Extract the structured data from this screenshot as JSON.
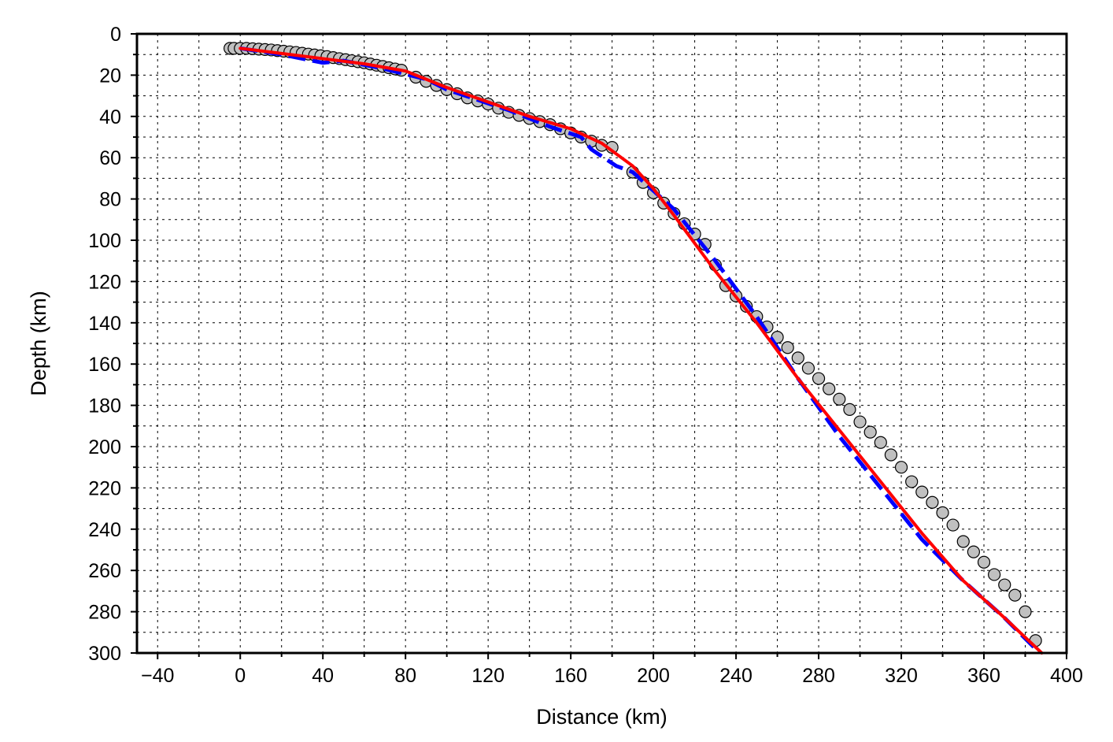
{
  "chart_data": {
    "type": "line",
    "xlabel": "Distance (km)",
    "ylabel": "Depth (km)",
    "xlim": [
      -50,
      400
    ],
    "ylim": [
      300,
      0
    ],
    "y_inverted": true,
    "x_ticks": [
      "−40",
      "0",
      "40",
      "80",
      "120",
      "160",
      "200",
      "240",
      "280",
      "320",
      "360",
      "400"
    ],
    "x_tick_values": [
      -40,
      0,
      40,
      80,
      120,
      160,
      200,
      240,
      280,
      320,
      360,
      400
    ],
    "y_ticks": [
      "0",
      "20",
      "40",
      "60",
      "80",
      "100",
      "120",
      "140",
      "160",
      "180",
      "200",
      "220",
      "240",
      "260",
      "280",
      "300"
    ],
    "y_tick_values": [
      0,
      20,
      40,
      60,
      80,
      100,
      120,
      140,
      160,
      180,
      200,
      220,
      240,
      260,
      280,
      300
    ],
    "grid": true,
    "grid_style": "dotted",
    "minor_grid_step_x": 20,
    "minor_grid_step_y": 10,
    "colors": {
      "points_fill": "#c0c0c0",
      "points_stroke": "#000000",
      "dashed_line": "#0000ff",
      "fit_line": "#ff0000"
    },
    "series": [
      {
        "marker": "circle",
        "points": [
          [
            -5,
            7
          ],
          [
            -3,
            7
          ],
          [
            0,
            7
          ],
          [
            3,
            7
          ],
          [
            6,
            7.2
          ],
          [
            9,
            7.4
          ],
          [
            12,
            7.6
          ],
          [
            15,
            7.8
          ],
          [
            18,
            8.1
          ],
          [
            21,
            8.4
          ],
          [
            24,
            8.7
          ],
          [
            27,
            9.0
          ],
          [
            30,
            9.4
          ],
          [
            33,
            9.8
          ],
          [
            36,
            10.2
          ],
          [
            39,
            10.6
          ],
          [
            42,
            11.0
          ],
          [
            45,
            11.5
          ],
          [
            48,
            12.0
          ],
          [
            51,
            12.5
          ],
          [
            54,
            13.0
          ],
          [
            57,
            13.5
          ],
          [
            60,
            14.0
          ],
          [
            63,
            14.6
          ],
          [
            66,
            15.2
          ],
          [
            69,
            15.8
          ],
          [
            72,
            16.4
          ],
          [
            75,
            17.0
          ],
          [
            78,
            17.6
          ],
          [
            85,
            21
          ],
          [
            90,
            23
          ],
          [
            95,
            25
          ],
          [
            100,
            27
          ],
          [
            105,
            29
          ],
          [
            110,
            31
          ],
          [
            115,
            32.5
          ],
          [
            120,
            34
          ],
          [
            125,
            36
          ],
          [
            130,
            38
          ],
          [
            135,
            39.5
          ],
          [
            140,
            41
          ],
          [
            145,
            42.5
          ],
          [
            150,
            44
          ],
          [
            155,
            46
          ],
          [
            160,
            48
          ],
          [
            165,
            50
          ],
          [
            170,
            52
          ],
          [
            175,
            54
          ],
          [
            180,
            55
          ],
          [
            190,
            67
          ],
          [
            195,
            72
          ],
          [
            200,
            77
          ],
          [
            205,
            82
          ],
          [
            210,
            87
          ],
          [
            215,
            92
          ],
          [
            220,
            97
          ],
          [
            225,
            102
          ],
          [
            230,
            112
          ],
          [
            235,
            122
          ],
          [
            240,
            127
          ],
          [
            245,
            132
          ],
          [
            250,
            137
          ],
          [
            255,
            142
          ],
          [
            260,
            147
          ],
          [
            265,
            152
          ],
          [
            270,
            157
          ],
          [
            275,
            162
          ],
          [
            280,
            167
          ],
          [
            285,
            172
          ],
          [
            290,
            177
          ],
          [
            295,
            182
          ],
          [
            300,
            188
          ],
          [
            305,
            193
          ],
          [
            310,
            198
          ],
          [
            315,
            204
          ],
          [
            320,
            210
          ],
          [
            325,
            217
          ],
          [
            330,
            222
          ],
          [
            335,
            227
          ],
          [
            340,
            232
          ],
          [
            345,
            238
          ],
          [
            350,
            246
          ],
          [
            355,
            251
          ],
          [
            360,
            256
          ],
          [
            365,
            262
          ],
          [
            370,
            267
          ],
          [
            375,
            272
          ],
          [
            380,
            280
          ],
          [
            385,
            294
          ]
        ]
      },
      {
        "style": "dashed",
        "points": [
          [
            0,
            7
          ],
          [
            20,
            10
          ],
          [
            40,
            14
          ],
          [
            50,
            13
          ],
          [
            70,
            17
          ],
          [
            90,
            22
          ],
          [
            100,
            27
          ],
          [
            130,
            37
          ],
          [
            150,
            45
          ],
          [
            165,
            50
          ],
          [
            170,
            56
          ],
          [
            182,
            64
          ],
          [
            190,
            67
          ],
          [
            210,
            85
          ],
          [
            230,
            110
          ],
          [
            250,
            137
          ],
          [
            270,
            167
          ],
          [
            290,
            195
          ],
          [
            310,
            220
          ],
          [
            330,
            245
          ],
          [
            350,
            265
          ],
          [
            370,
            283
          ],
          [
            385,
            298
          ]
        ]
      },
      {
        "style": "solid",
        "points": [
          [
            0,
            7
          ],
          [
            20,
            9.5
          ],
          [
            40,
            12
          ],
          [
            60,
            14.5
          ],
          [
            80,
            18
          ],
          [
            100,
            26
          ],
          [
            120,
            33
          ],
          [
            140,
            40
          ],
          [
            160,
            46
          ],
          [
            175,
            53
          ],
          [
            190,
            64
          ],
          [
            200,
            75
          ],
          [
            210,
            88
          ],
          [
            230,
            115
          ],
          [
            250,
            140
          ],
          [
            270,
            167
          ],
          [
            290,
            192
          ],
          [
            310,
            217
          ],
          [
            330,
            242
          ],
          [
            350,
            265
          ],
          [
            370,
            283
          ],
          [
            388,
            300
          ]
        ]
      }
    ]
  }
}
